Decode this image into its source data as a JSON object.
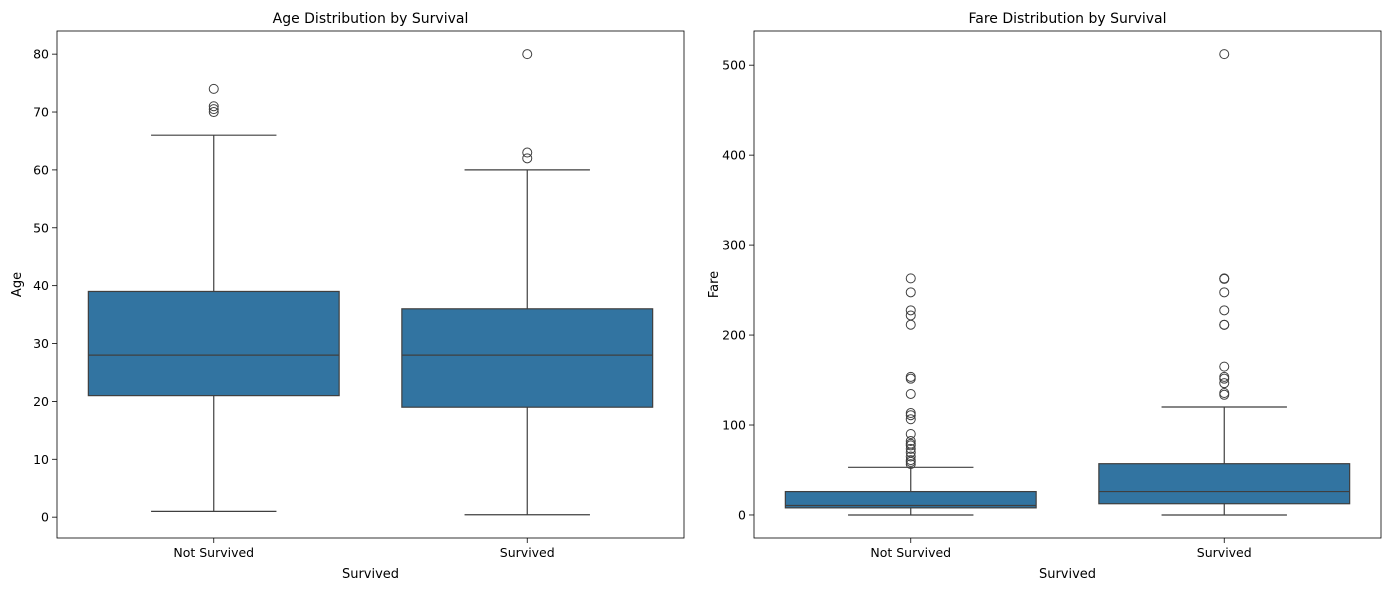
{
  "chart_data": [
    {
      "type": "box",
      "title": "Age Distribution by Survival",
      "xlabel": "Survived",
      "ylabel": "Age",
      "categories": [
        "Not Survived",
        "Survived"
      ],
      "ylim": [
        -3.6,
        84.0
      ],
      "yticks": [
        0,
        10,
        20,
        30,
        40,
        50,
        60,
        70,
        80
      ],
      "color": "#3274a1",
      "boxes": [
        {
          "category": "Not Survived",
          "whisker_low": 1,
          "q1": 21,
          "median": 28,
          "q3": 39,
          "whisker_high": 66,
          "outliers": [
            70,
            70.5,
            71,
            74
          ]
        },
        {
          "category": "Survived",
          "whisker_low": 0.42,
          "q1": 19,
          "median": 28,
          "q3": 36,
          "whisker_high": 60,
          "outliers": [
            62,
            63,
            80
          ]
        }
      ]
    },
    {
      "type": "box",
      "title": "Fare Distribution by Survival",
      "xlabel": "Survived",
      "ylabel": "Fare",
      "categories": [
        "Not Survived",
        "Survived"
      ],
      "ylim": [
        -25.6,
        538.0
      ],
      "yticks": [
        0,
        100,
        200,
        300,
        400,
        500
      ],
      "color": "#3274a1",
      "boxes": [
        {
          "category": "Not Survived",
          "whisker_low": 0,
          "q1": 7.9,
          "median": 10.5,
          "q3": 26,
          "whisker_high": 53,
          "outliers": [
            56.5,
            59,
            61,
            65,
            69.5,
            73.5,
            77.3,
            79.2,
            82.2,
            90,
            106.4,
            110.9,
            113.3,
            134.5,
            151.5,
            153.5,
            211.5,
            221.8,
            227.5,
            247.5,
            263
          ]
        },
        {
          "category": "Survived",
          "whisker_low": 0,
          "q1": 12.5,
          "median": 26,
          "q3": 57,
          "whisker_high": 120,
          "outliers": [
            133.6,
            135.6,
            146.5,
            151.5,
            153.5,
            164.9,
            211.3,
            211.5,
            227.5,
            247.5,
            262.4,
            263,
            512.3
          ]
        }
      ]
    }
  ]
}
